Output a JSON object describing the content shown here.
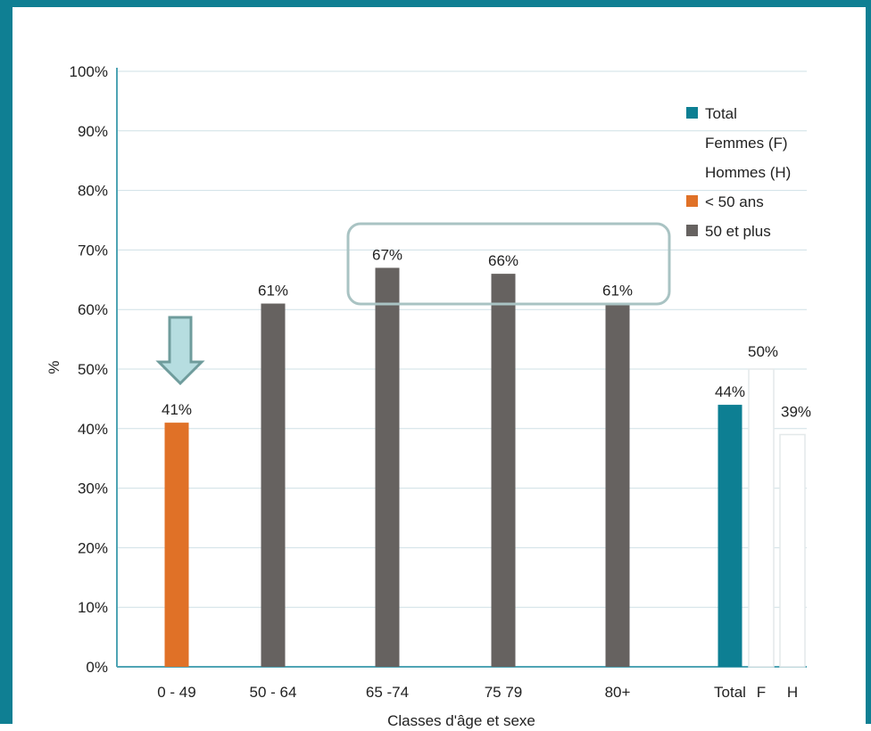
{
  "chart_data": {
    "type": "bar",
    "categories": [
      "0 - 49",
      "50 - 64",
      "65 -74",
      "75  79",
      "80+",
      "Total",
      "F",
      "H"
    ],
    "values": [
      41,
      61,
      67,
      66,
      61,
      44,
      50,
      39
    ],
    "data_labels": [
      "41%",
      "61%",
      "67%",
      "66%",
      "61%",
      "44%",
      "50%",
      "39%"
    ],
    "bar_groups": [
      "< 50 ans",
      "50 et plus",
      "50 et plus",
      "50 et plus",
      "50 et plus",
      "Total",
      "Femmes (F)",
      "Hommes (H)"
    ],
    "xlabel": "Classes d'âge et sexe",
    "ylabel": "%",
    "ylim": [
      0,
      100
    ],
    "yticks": [
      "0%",
      "10%",
      "20%",
      "30%",
      "40%",
      "50%",
      "60%",
      "70%",
      "80%",
      "90%",
      "100%"
    ],
    "grid": true,
    "legend_position": "top-right",
    "legend": [
      {
        "label": "Total",
        "color": "#0d7f93",
        "swatch": true
      },
      {
        "label": "Femmes (F)",
        "color": "#ffffff",
        "swatch": false
      },
      {
        "label": "Hommes (H)",
        "color": "#ffffff",
        "swatch": false
      },
      {
        "label": "< 50 ans",
        "color": "#e07127",
        "swatch": true
      },
      {
        "label": "50 et plus",
        "color": "#666260",
        "swatch": true
      }
    ],
    "highlight": {
      "categories": [
        "65 -74",
        "75  79",
        "80+"
      ],
      "style": "rounded-box"
    },
    "arrow_marker": {
      "category": "0 - 49",
      "color": "#b6dde0"
    }
  },
  "colors": {
    "frame": "#0f7f93",
    "under50": "#e07127",
    "over50": "#666260",
    "total": "#0d7f93",
    "women": "#ffffff",
    "men": "#ffffff",
    "grid": "#cfe0e6",
    "axis": "#4fa4b4",
    "highlight_box": "#a9c3c3",
    "arrow_fill": "#b6dde0",
    "arrow_stroke": "#6f9c9c"
  }
}
